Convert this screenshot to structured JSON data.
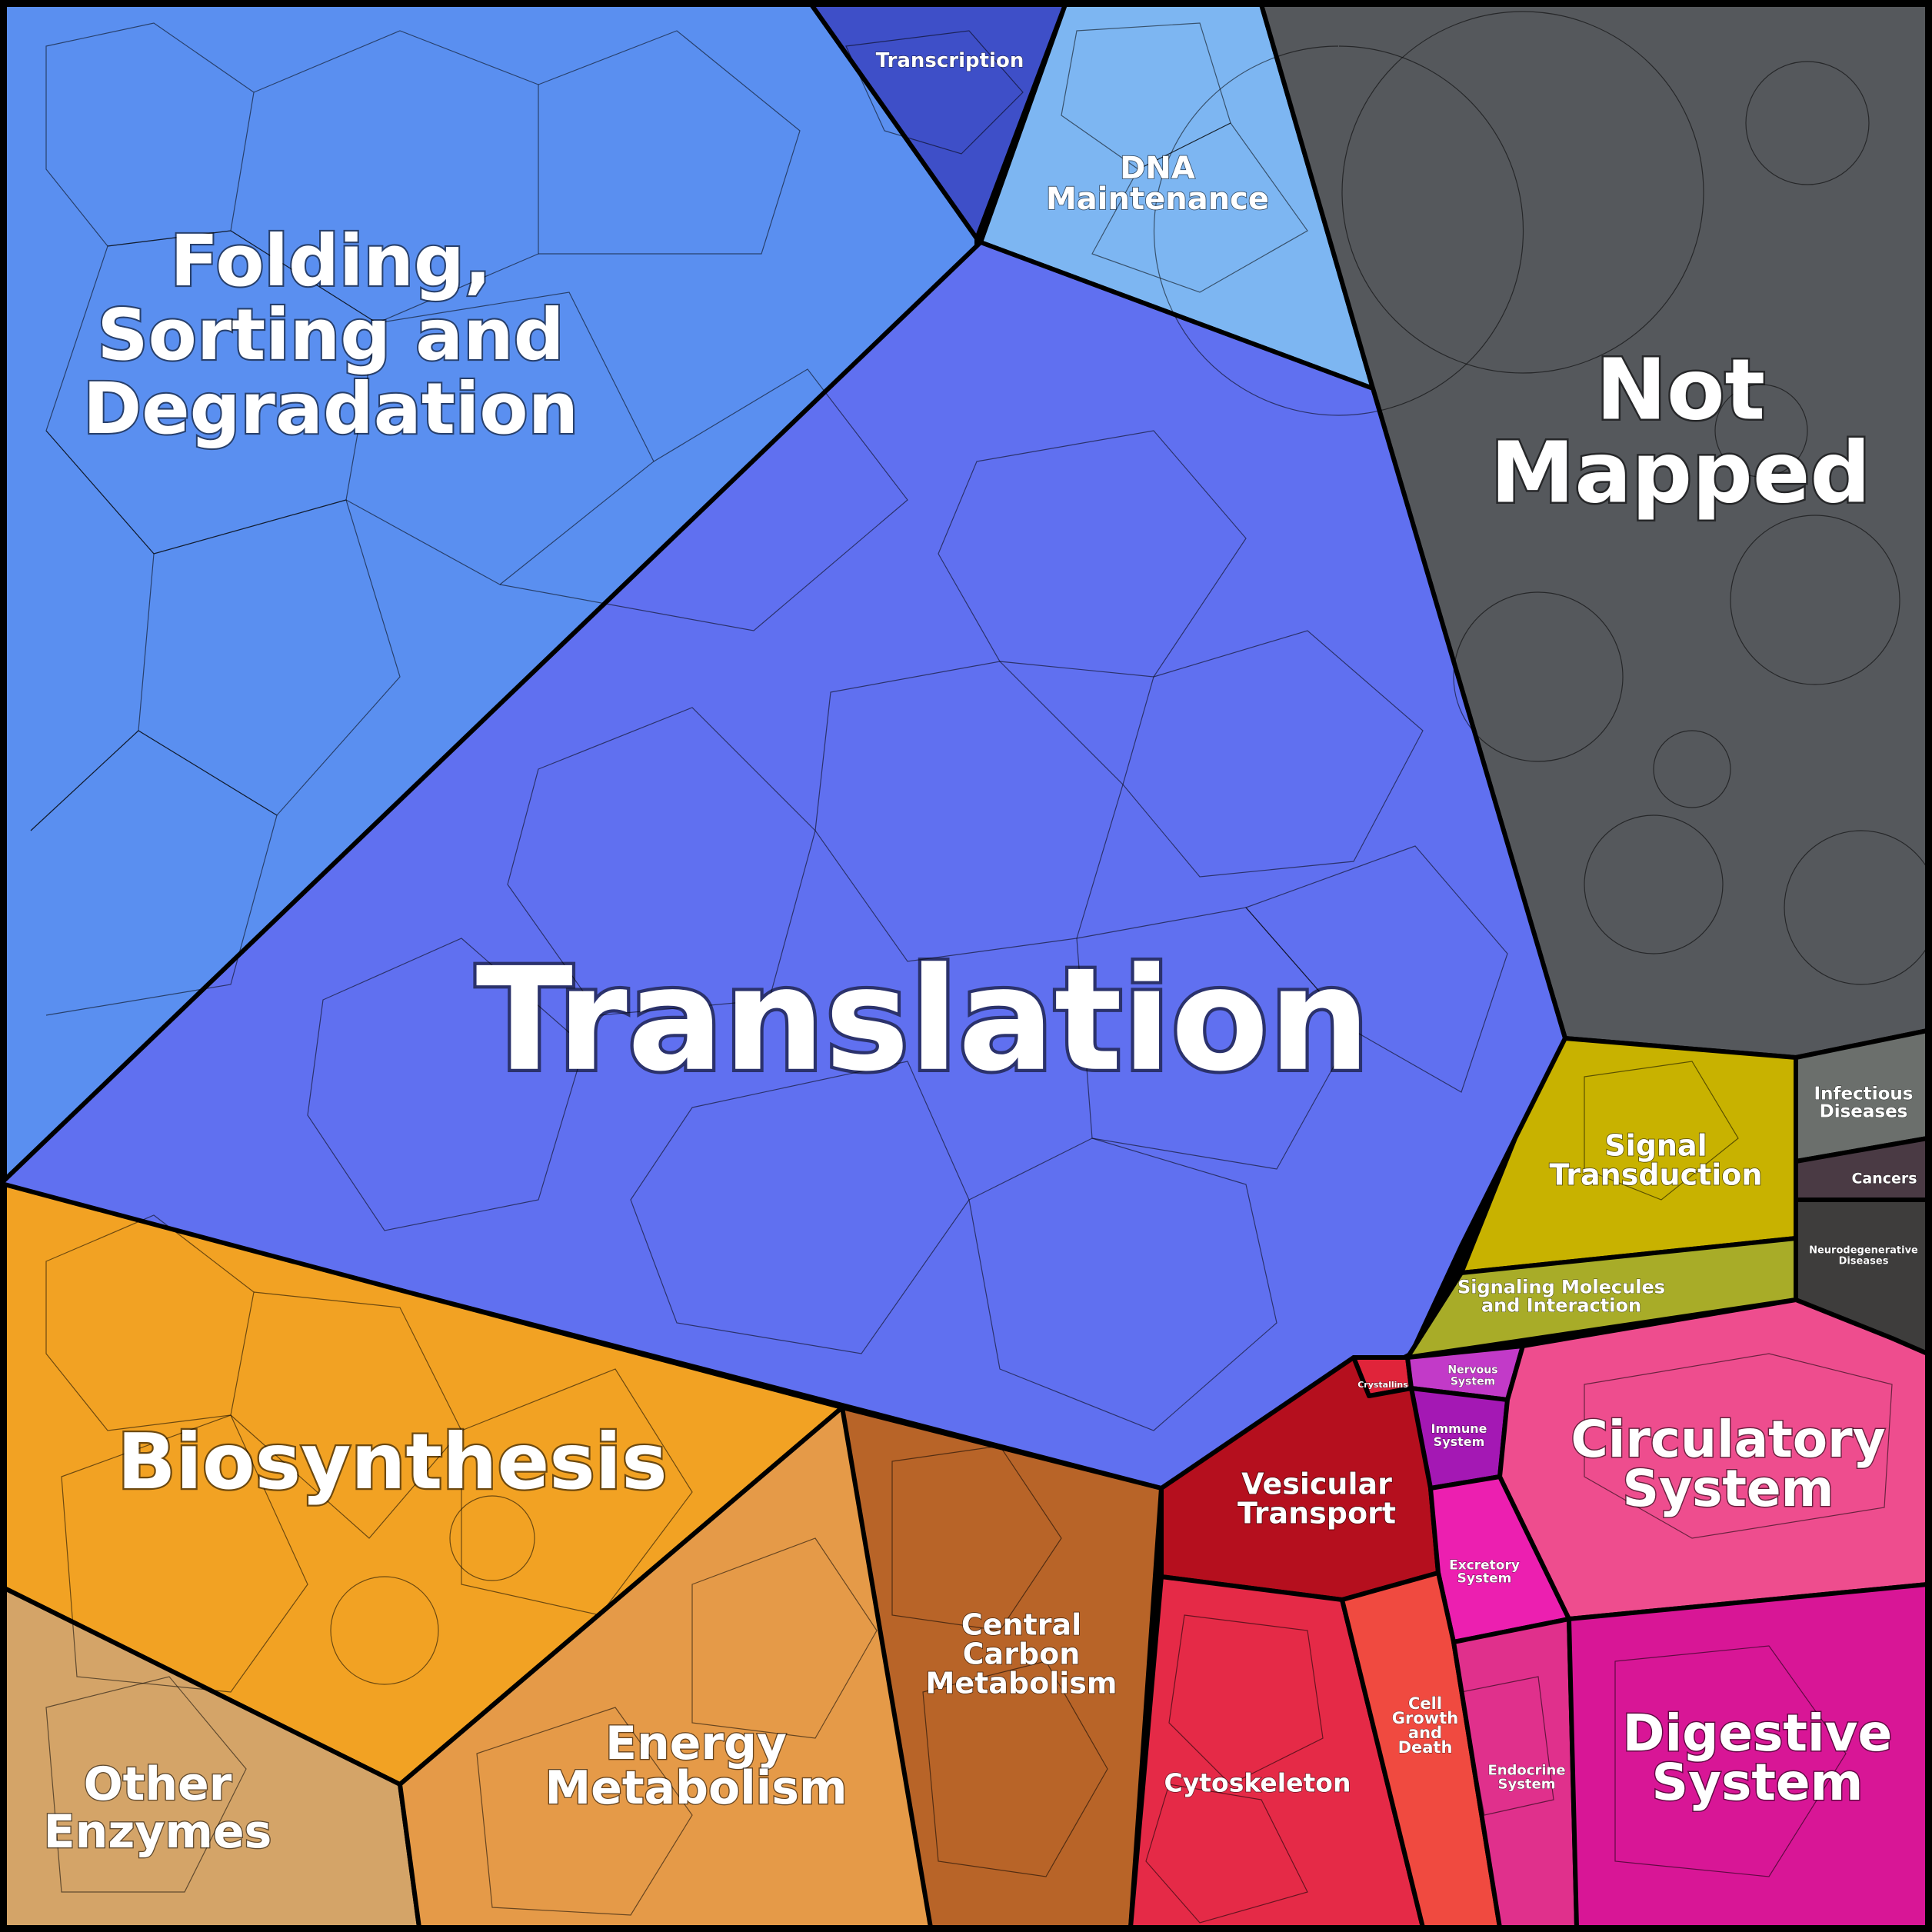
{
  "diagram": {
    "type": "voronoi-treemap",
    "regions": [
      {
        "id": "folding",
        "lines": [
          "Folding,",
          "Sorting and",
          "Degradation"
        ],
        "color": "#5a8ff0"
      },
      {
        "id": "transcription",
        "lines": [
          "Transcription"
        ],
        "color": "#3e4fc8"
      },
      {
        "id": "dna",
        "lines": [
          "DNA",
          "Maintenance"
        ],
        "color": "#7db6f2"
      },
      {
        "id": "notmapped",
        "lines": [
          "Not",
          "Mapped"
        ],
        "color": "#55585c"
      },
      {
        "id": "translation",
        "lines": [
          "Translation"
        ],
        "color": "#6070f0"
      },
      {
        "id": "biosynthesis",
        "lines": [
          "Biosynthesis"
        ],
        "color": "#f2a223"
      },
      {
        "id": "otherenzymes",
        "lines": [
          "Other",
          "Enzymes"
        ],
        "color": "#d4a468"
      },
      {
        "id": "energy",
        "lines": [
          "Energy",
          "Metabolism"
        ],
        "color": "#e59a48"
      },
      {
        "id": "central",
        "lines": [
          "Central",
          "Carbon",
          "Metabolism"
        ],
        "color": "#b86428"
      },
      {
        "id": "signal",
        "lines": [
          "Signal",
          "Transduction"
        ],
        "color": "#c8b200"
      },
      {
        "id": "signalingmol",
        "lines": [
          "Signaling Molecules",
          "and Interaction"
        ],
        "color": "#a8ac28"
      },
      {
        "id": "infectious",
        "lines": [
          "Infectious",
          "Diseases"
        ],
        "color": "#6b6f6c"
      },
      {
        "id": "cancers",
        "lines": [
          "Cancers"
        ],
        "color": "#4a3a44"
      },
      {
        "id": "neuro",
        "lines": [
          "Neurodegenerative",
          "Diseases"
        ],
        "color": "#3e3d3c"
      },
      {
        "id": "crystallins",
        "lines": [
          "Crystallins"
        ],
        "color": "#e0243a"
      },
      {
        "id": "nervous",
        "lines": [
          "Nervous",
          "System"
        ],
        "color": "#c23ac8"
      },
      {
        "id": "immune",
        "lines": [
          "Immune",
          "System"
        ],
        "color": "#a418b4"
      },
      {
        "id": "vesicular",
        "lines": [
          "Vesicular",
          "Transport"
        ],
        "color": "#b50f1e"
      },
      {
        "id": "circulatory",
        "lines": [
          "Circulatory",
          "System"
        ],
        "color": "#ee4d8e"
      },
      {
        "id": "excretory",
        "lines": [
          "Excretory",
          "System"
        ],
        "color": "#ec1fb0"
      },
      {
        "id": "cytoskeleton",
        "lines": [
          "Cytoskeleton"
        ],
        "color": "#e52a47"
      },
      {
        "id": "cellgrowth",
        "lines": [
          "Cell",
          "Growth",
          "and",
          "Death"
        ],
        "color": "#f04a40"
      },
      {
        "id": "endocrine",
        "lines": [
          "Endocrine",
          "System"
        ],
        "color": "#e0308c"
      },
      {
        "id": "digestive",
        "lines": [
          "Digestive",
          "System"
        ],
        "color": "#d81696"
      }
    ]
  }
}
